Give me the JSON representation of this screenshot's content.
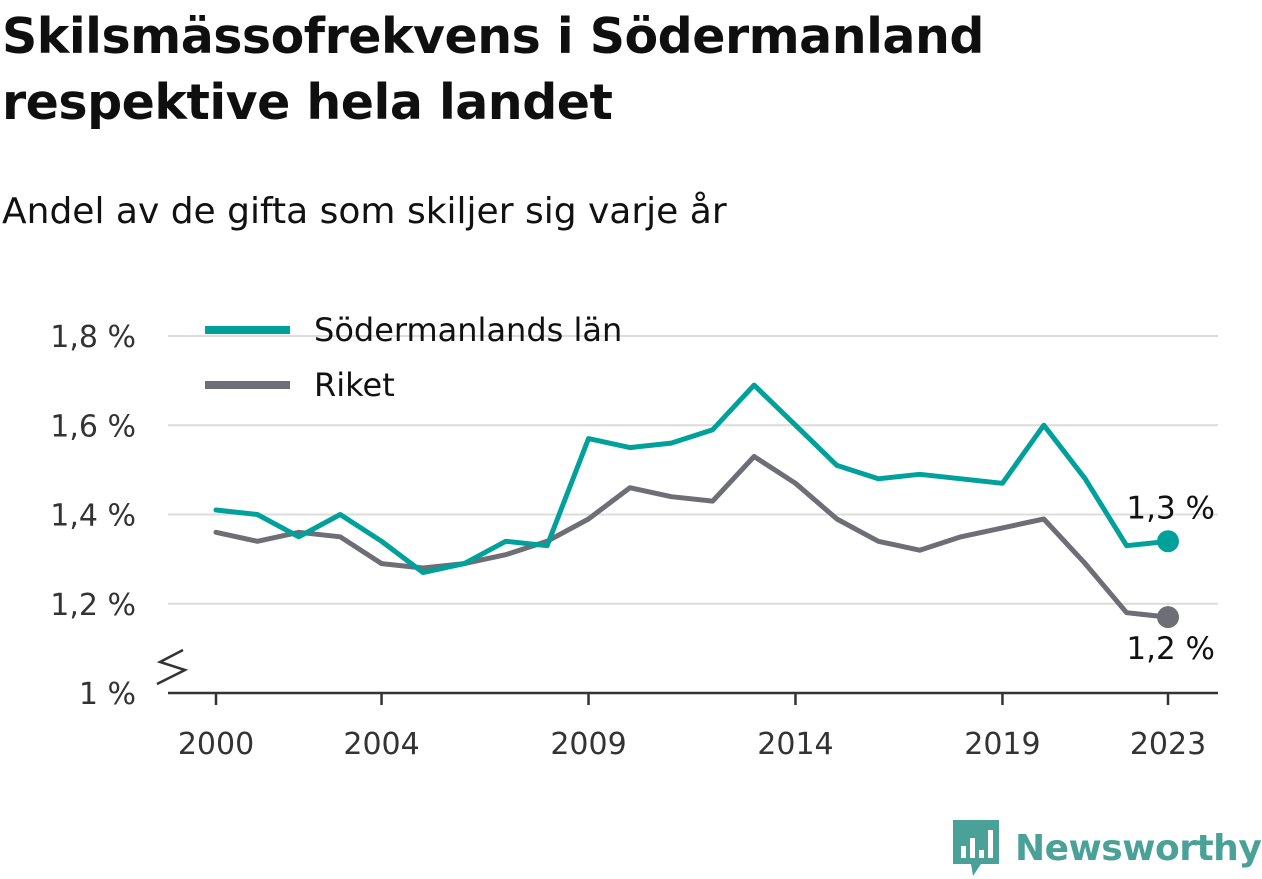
{
  "title": "Skilsmässofrekvens i Södermanland respektive hela landet",
  "subtitle": "Andel av de gifta som skiljer sig varje år",
  "brand": {
    "name": "Newsworthy",
    "icon": "chart-logo-icon",
    "color": "#4aa197"
  },
  "colors": {
    "primary": "#00a19a",
    "secondary": "#6e6e76",
    "grid": "#dcdcdc",
    "axis": "#333333"
  },
  "chart_data": {
    "type": "line",
    "x": [
      2000,
      2001,
      2002,
      2003,
      2004,
      2005,
      2006,
      2007,
      2008,
      2009,
      2010,
      2011,
      2012,
      2013,
      2014,
      2015,
      2016,
      2017,
      2018,
      2019,
      2020,
      2021,
      2022,
      2023
    ],
    "series": [
      {
        "name": "Södermanlands län",
        "color": "#00a19a",
        "values": [
          1.41,
          1.4,
          1.35,
          1.4,
          1.34,
          1.27,
          1.29,
          1.34,
          1.33,
          1.57,
          1.55,
          1.56,
          1.59,
          1.69,
          1.6,
          1.51,
          1.48,
          1.49,
          1.48,
          1.47,
          1.6,
          1.48,
          1.33,
          1.34
        ],
        "end_label": "1,3 %"
      },
      {
        "name": "Riket",
        "color": "#6e6e76",
        "values": [
          1.36,
          1.34,
          1.36,
          1.35,
          1.29,
          1.28,
          1.29,
          1.31,
          1.34,
          1.39,
          1.46,
          1.44,
          1.43,
          1.53,
          1.47,
          1.39,
          1.34,
          1.32,
          1.35,
          1.37,
          1.39,
          1.29,
          1.18,
          1.17
        ],
        "end_label": "1,2 %"
      }
    ],
    "y_ticks": [
      {
        "value": 1.0,
        "label": "1 %"
      },
      {
        "value": 1.2,
        "label": "1,2 %"
      },
      {
        "value": 1.4,
        "label": "1,4 %"
      },
      {
        "value": 1.6,
        "label": "1,6 %"
      },
      {
        "value": 1.8,
        "label": "1,8 %"
      }
    ],
    "x_ticks": [
      2000,
      2004,
      2009,
      2014,
      2019,
      2023
    ],
    "ylim": [
      1.0,
      1.8
    ],
    "y_axis_break": true,
    "grid": true,
    "legend_position": "top-left",
    "xlabel": "",
    "ylabel": ""
  }
}
